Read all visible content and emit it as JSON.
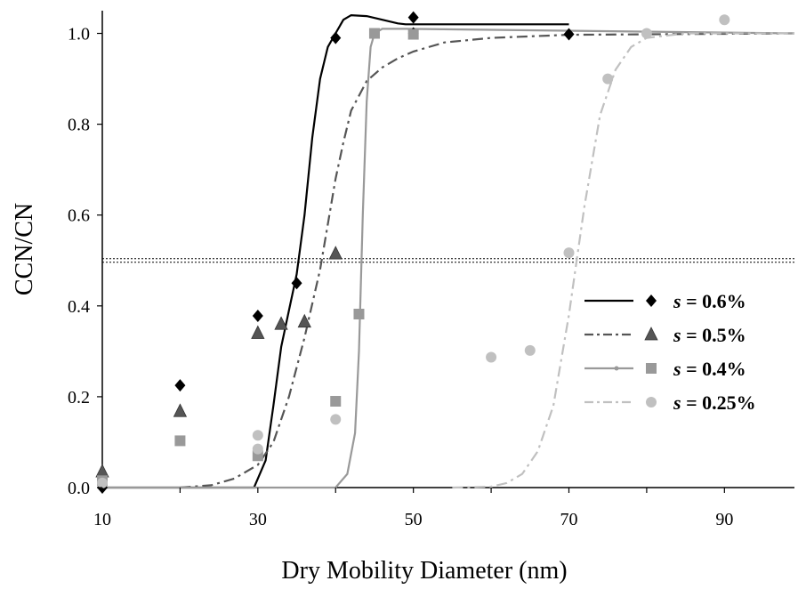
{
  "chart_data": {
    "type": "scatter",
    "xlabel": "Dry Mobility Diameter (nm)",
    "ylabel": "CCN/CN",
    "xlim": [
      10,
      99
    ],
    "ylim": [
      0,
      1.05
    ],
    "xticks": [
      "10",
      "30",
      "50",
      "70",
      "90"
    ],
    "xtick_values": [
      10,
      30,
      50,
      70,
      90
    ],
    "yticks": [
      "0.0",
      "0.2",
      "0.4",
      "0.6",
      "0.8",
      "1.0"
    ],
    "ytick_values": [
      0,
      0.2,
      0.4,
      0.6,
      0.8,
      1.0
    ],
    "grid": false,
    "legend_position": "bottom-right",
    "reference_line": {
      "y": 0.5,
      "style": "dotted"
    },
    "series": [
      {
        "name": "s = 0.6%",
        "symbol": "s",
        "value_label": " = 0.6%",
        "marker": "diamond",
        "color": "#000000",
        "line_style": "solid",
        "points": [
          [
            10,
            0.0
          ],
          [
            20,
            0.225
          ],
          [
            30,
            0.378
          ],
          [
            35,
            0.45
          ],
          [
            40,
            0.99
          ],
          [
            50,
            1.035
          ],
          [
            50,
            1.0
          ],
          [
            70,
            0.998
          ]
        ],
        "fit": [
          [
            10,
            0.0
          ],
          [
            29.5,
            0.0
          ],
          [
            31,
            0.06
          ],
          [
            32,
            0.18
          ],
          [
            33,
            0.31
          ],
          [
            34,
            0.39
          ],
          [
            35,
            0.47
          ],
          [
            36,
            0.6
          ],
          [
            37,
            0.77
          ],
          [
            38,
            0.9
          ],
          [
            39,
            0.97
          ],
          [
            40,
            1.0
          ],
          [
            41,
            1.03
          ],
          [
            42,
            1.04
          ],
          [
            44,
            1.038
          ],
          [
            46,
            1.03
          ],
          [
            48,
            1.022
          ],
          [
            49,
            1.02
          ],
          [
            70,
            1.02
          ]
        ]
      },
      {
        "name": "s = 0.5%",
        "symbol": "s",
        "value_label": " = 0.5%",
        "marker": "triangle",
        "color": "#555555",
        "line_style": "dash-dot",
        "points": [
          [
            10,
            0.035
          ],
          [
            20,
            0.168
          ],
          [
            30,
            0.34
          ],
          [
            33,
            0.36
          ],
          [
            36,
            0.365
          ],
          [
            40,
            0.515
          ]
        ],
        "fit": [
          [
            20,
            0.0
          ],
          [
            24,
            0.005
          ],
          [
            27,
            0.02
          ],
          [
            30,
            0.05
          ],
          [
            32,
            0.1
          ],
          [
            34,
            0.2
          ],
          [
            36,
            0.33
          ],
          [
            38,
            0.48
          ],
          [
            40,
            0.68
          ],
          [
            41,
            0.76
          ],
          [
            42,
            0.83
          ],
          [
            44,
            0.895
          ],
          [
            46,
            0.925
          ],
          [
            48,
            0.945
          ],
          [
            50,
            0.96
          ],
          [
            54,
            0.98
          ],
          [
            60,
            0.99
          ],
          [
            70,
            0.997
          ],
          [
            99,
            1.0
          ]
        ]
      },
      {
        "name": "s = 0.4%",
        "symbol": "s",
        "value_label": " = 0.4%",
        "marker": "square",
        "color": "#999999",
        "line_style": "solid",
        "points": [
          [
            10,
            0.015
          ],
          [
            20,
            0.103
          ],
          [
            30,
            0.07
          ],
          [
            40,
            0.19
          ],
          [
            43,
            0.382
          ],
          [
            45,
            1.0
          ],
          [
            50,
            0.998
          ]
        ],
        "fit": [
          [
            10,
            0.0
          ],
          [
            40,
            0.0
          ],
          [
            41.5,
            0.03
          ],
          [
            42.5,
            0.12
          ],
          [
            43,
            0.3
          ],
          [
            43.5,
            0.6
          ],
          [
            44,
            0.85
          ],
          [
            44.5,
            0.97
          ],
          [
            45,
            1.0
          ],
          [
            46,
            1.01
          ],
          [
            49,
            1.01
          ],
          [
            99,
            1.0
          ]
        ]
      },
      {
        "name": "s = 0.25%",
        "symbol": "s",
        "value_label": " = 0.25%",
        "marker": "circle",
        "color": "#c0c0c0",
        "line_style": "dash-dot",
        "points": [
          [
            10,
            0.01
          ],
          [
            30,
            0.115
          ],
          [
            30,
            0.085
          ],
          [
            40,
            0.15
          ],
          [
            60,
            0.287
          ],
          [
            65,
            0.302
          ],
          [
            70,
            0.517
          ],
          [
            75,
            0.9
          ],
          [
            80,
            1.0
          ],
          [
            90,
            1.03
          ]
        ],
        "fit": [
          [
            55,
            0.0
          ],
          [
            60,
            0.002
          ],
          [
            62,
            0.01
          ],
          [
            64,
            0.03
          ],
          [
            66,
            0.08
          ],
          [
            68,
            0.18
          ],
          [
            70,
            0.38
          ],
          [
            71,
            0.5
          ],
          [
            72,
            0.62
          ],
          [
            74,
            0.82
          ],
          [
            76,
            0.92
          ],
          [
            78,
            0.97
          ],
          [
            80,
            0.99
          ],
          [
            85,
            1.0
          ],
          [
            99,
            1.0
          ]
        ]
      }
    ]
  }
}
